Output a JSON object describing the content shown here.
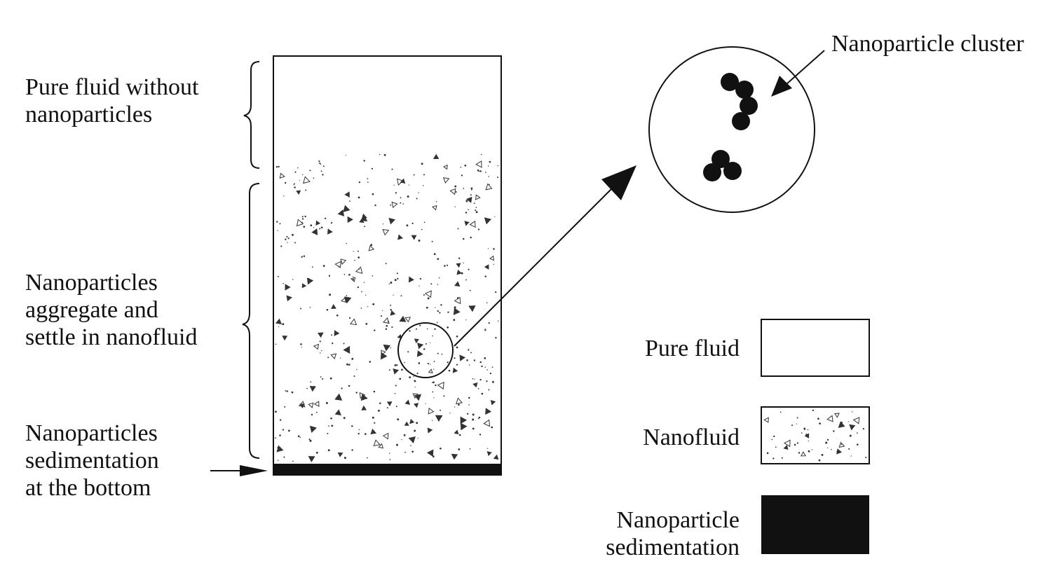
{
  "labels": {
    "pure_fluid_region": [
      "Pure fluid without",
      "nanoparticles"
    ],
    "aggregate_region": [
      "Nanoparticles",
      "aggregate",
      "and",
      "settle in nanofluid"
    ],
    "sedimentation_region": [
      "Nanoparticles",
      "sedimentation",
      "at the bottom"
    ],
    "cluster_callout": "Nanoparticle cluster"
  },
  "legend": {
    "items": [
      {
        "label": [
          "Pure fluid"
        ],
        "swatch": "pure-fluid"
      },
      {
        "label": [
          "Nanofluid"
        ],
        "swatch": "nanofluid"
      },
      {
        "label": [
          "Nanoparticle",
          "sedimentation"
        ],
        "swatch": "sedimentation"
      }
    ]
  },
  "colors": {
    "ink": "#111111",
    "background": "#ffffff",
    "sediment": "#111111"
  }
}
